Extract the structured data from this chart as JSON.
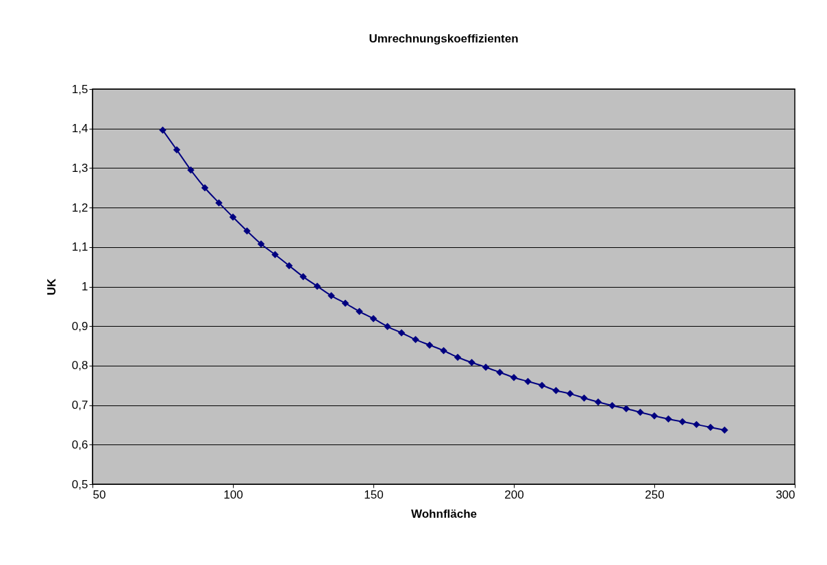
{
  "chart_data": {
    "type": "line",
    "title": "Umrechnungskoeffizienten",
    "xlabel": "Wohnfläche",
    "ylabel": "UK",
    "x": [
      75,
      80,
      85,
      90,
      95,
      100,
      105,
      110,
      115,
      120,
      125,
      130,
      135,
      140,
      145,
      150,
      155,
      160,
      165,
      170,
      175,
      180,
      185,
      190,
      195,
      200,
      205,
      210,
      215,
      220,
      225,
      230,
      235,
      240,
      245,
      250,
      255,
      260,
      265,
      270,
      275
    ],
    "series": [
      {
        "color": "#000080",
        "values": [
          1.396,
          1.346,
          1.295,
          1.25,
          1.212,
          1.176,
          1.141,
          1.108,
          1.081,
          1.053,
          1.025,
          1.001,
          0.977,
          0.958,
          0.937,
          0.919,
          0.899,
          0.883,
          0.866,
          0.852,
          0.838,
          0.821,
          0.808,
          0.796,
          0.783,
          0.77,
          0.76,
          0.75,
          0.737,
          0.729,
          0.718,
          0.708,
          0.699,
          0.691,
          0.682,
          0.673,
          0.665,
          0.658,
          0.651,
          0.644,
          0.637
        ]
      }
    ],
    "xlim": [
      50,
      300
    ],
    "xticks": [
      50,
      100,
      150,
      200,
      250,
      300
    ],
    "ylim": [
      0.5,
      1.5
    ],
    "yticks": [
      {
        "value": 0.5,
        "label": "0,5"
      },
      {
        "value": 0.6,
        "label": "0,6"
      },
      {
        "value": 0.7,
        "label": "0,7"
      },
      {
        "value": 0.8,
        "label": "0,8"
      },
      {
        "value": 0.9,
        "label": "0,9"
      },
      1,
      {
        "value": 1.1,
        "label": "1,1"
      },
      {
        "value": 1.2,
        "label": "1,2"
      },
      {
        "value": 1.3,
        "label": "1,3"
      },
      {
        "value": 1.4,
        "label": "1,4"
      },
      {
        "value": 1.5,
        "label": "1,5"
      }
    ],
    "grid": "y",
    "legend": false,
    "marker": "diamond",
    "line_style": "solid"
  }
}
